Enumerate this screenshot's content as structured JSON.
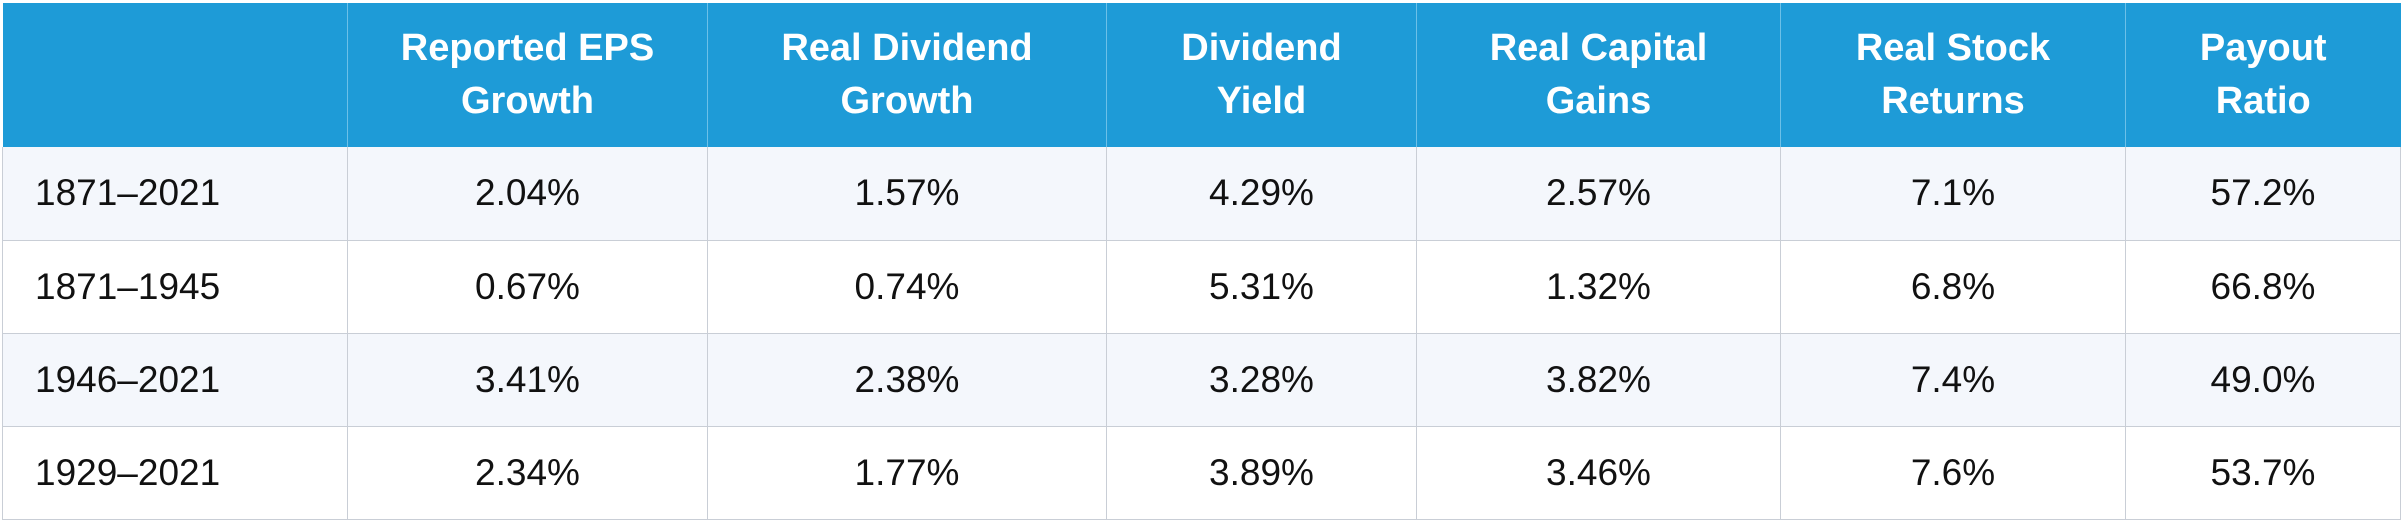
{
  "table": {
    "columns": [
      {
        "line1": "",
        "line2": ""
      },
      {
        "line1": "Reported EPS",
        "line2": "Growth"
      },
      {
        "line1": "Real Dividend",
        "line2": "Growth"
      },
      {
        "line1": "Dividend",
        "line2": "Yield"
      },
      {
        "line1": "Real Capital",
        "line2": "Gains"
      },
      {
        "line1": "Real Stock",
        "line2": "Returns"
      },
      {
        "line1": "Payout",
        "line2": "Ratio"
      }
    ],
    "rows": [
      [
        "1871–2021",
        "2.04%",
        "1.57%",
        "4.29%",
        "2.57%",
        "7.1%",
        "57.2%"
      ],
      [
        "1871–1945",
        "0.67%",
        "0.74%",
        "5.31%",
        "1.32%",
        "6.8%",
        "66.8%"
      ],
      [
        "1946–2021",
        "3.41%",
        "2.38%",
        "3.28%",
        "3.82%",
        "7.4%",
        "49.0%"
      ],
      [
        "1929–2021",
        "2.34%",
        "1.77%",
        "3.89%",
        "3.46%",
        "7.6%",
        "53.7%"
      ]
    ]
  },
  "colors": {
    "header_bg": "#1e9bd7",
    "header_text": "#ffffff",
    "row_alt_bg": "#f4f7fc",
    "row_bg": "#ffffff",
    "grid": "#c9ced6"
  }
}
